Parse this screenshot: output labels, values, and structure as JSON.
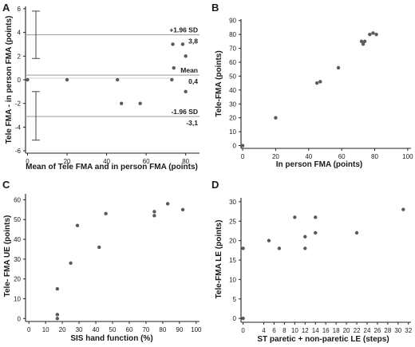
{
  "chart_data": [
    {
      "panel": "A",
      "type": "scatter",
      "xlabel": "Mean of Tele FMA and in person FMA (points)",
      "ylabel": "Tele FMA - in person FMA (points)",
      "xlim": [
        -1,
        87
      ],
      "ylim": [
        -6.2,
        6.2
      ],
      "xticks": [
        0,
        20,
        40,
        60,
        80
      ],
      "yticks": [
        -6,
        -4,
        -2,
        0,
        2,
        4,
        6
      ],
      "points": [
        {
          "x": 0,
          "y": 0
        },
        {
          "x": 20,
          "y": 0
        },
        {
          "x": 45.5,
          "y": 0
        },
        {
          "x": 47.5,
          "y": -2
        },
        {
          "x": 57,
          "y": -2
        },
        {
          "x": 73,
          "y": 0
        },
        {
          "x": 73.5,
          "y": 3
        },
        {
          "x": 74,
          "y": 1
        },
        {
          "x": 78.5,
          "y": 3
        },
        {
          "x": 80,
          "y": 2
        },
        {
          "x": 80,
          "y": -1
        }
      ],
      "reference_lines": [
        {
          "name": "upper",
          "label": "+1.96 SD",
          "value_label": "3,8",
          "y": 3.8
        },
        {
          "name": "mean",
          "label": "Mean",
          "value_label": "0,4",
          "y": 0.4
        },
        {
          "name": "lower",
          "label": "-1.96 SD",
          "value_label": "-3,1",
          "y": -3.1
        }
      ],
      "error_bars": [
        {
          "y_low": 1.8,
          "y_high": 5.8
        },
        {
          "y_low": -5.1,
          "y_high": -1.0
        }
      ]
    },
    {
      "panel": "B",
      "type": "scatter",
      "xlabel": "In person FMA (points)",
      "ylabel": "Tele-FMA (points)",
      "xlim": [
        -1,
        102
      ],
      "ylim": [
        -2,
        91
      ],
      "xticks": [
        0,
        20,
        40,
        60,
        80,
        100
      ],
      "yticks": [
        0,
        10,
        20,
        30,
        40,
        50,
        60,
        70,
        80,
        90
      ],
      "points": [
        {
          "x": 0,
          "y": 0
        },
        {
          "x": 20,
          "y": 20
        },
        {
          "x": 45,
          "y": 45
        },
        {
          "x": 47,
          "y": 46
        },
        {
          "x": 58,
          "y": 56
        },
        {
          "x": 72,
          "y": 75
        },
        {
          "x": 73,
          "y": 73
        },
        {
          "x": 74,
          "y": 75
        },
        {
          "x": 77,
          "y": 80
        },
        {
          "x": 79,
          "y": 81
        },
        {
          "x": 81,
          "y": 80
        }
      ]
    },
    {
      "panel": "C",
      "type": "scatter",
      "xlabel": "SIS hand function (%)",
      "ylabel": "Tele- FMA UE (points)",
      "xlim": [
        -2,
        102
      ],
      "ylim": [
        -1.5,
        63
      ],
      "xticks": [
        0,
        10,
        20,
        30,
        40,
        50,
        60,
        70,
        80,
        90,
        100
      ],
      "yticks": [
        0,
        10,
        20,
        30,
        40,
        50,
        60
      ],
      "points": [
        {
          "x": 17,
          "y": 15
        },
        {
          "x": 17,
          "y": 2
        },
        {
          "x": 17,
          "y": 0
        },
        {
          "x": 25,
          "y": 28
        },
        {
          "x": 29,
          "y": 47
        },
        {
          "x": 42,
          "y": 36
        },
        {
          "x": 46,
          "y": 53
        },
        {
          "x": 75,
          "y": 54
        },
        {
          "x": 75,
          "y": 52
        },
        {
          "x": 83,
          "y": 58
        },
        {
          "x": 92,
          "y": 55
        }
      ]
    },
    {
      "panel": "D",
      "type": "scatter",
      "xlabel": "ST paretic + non-paretic LE (steps)",
      "ylabel": "Tele-FMA LE (points)",
      "xlim": [
        -0.4,
        32.5
      ],
      "ylim": [
        -1,
        31
      ],
      "xticks": [
        0,
        4,
        6,
        8,
        10,
        12,
        14,
        16,
        18,
        20,
        22,
        24,
        26,
        28,
        30,
        32
      ],
      "yticks": [
        0,
        5,
        10,
        15,
        20,
        25,
        30
      ],
      "points": [
        {
          "x": 0,
          "y": 18
        },
        {
          "x": 0,
          "y": 0
        },
        {
          "x": 5,
          "y": 20
        },
        {
          "x": 7,
          "y": 18
        },
        {
          "x": 10,
          "y": 26
        },
        {
          "x": 12,
          "y": 21
        },
        {
          "x": 12,
          "y": 18
        },
        {
          "x": 14,
          "y": 26
        },
        {
          "x": 14,
          "y": 22
        },
        {
          "x": 22,
          "y": 22
        },
        {
          "x": 31,
          "y": 28
        }
      ]
    }
  ],
  "colors": {
    "point": "#5a5a5a",
    "axis": "#222222",
    "reference_line": "#9a9a9a",
    "text": "#1a1a1a"
  }
}
